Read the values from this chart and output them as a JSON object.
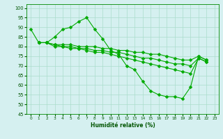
{
  "series": [
    {
      "x": [
        0,
        1,
        2,
        3,
        4,
        5,
        6,
        7,
        8,
        9,
        10,
        11,
        12,
        13,
        14,
        15,
        16,
        17,
        18,
        19,
        20,
        21,
        22
      ],
      "y": [
        89,
        82,
        82,
        85,
        89,
        90,
        93,
        95,
        89,
        84,
        78,
        76,
        70,
        68,
        62,
        57,
        55,
        54,
        54,
        53,
        59,
        75,
        73
      ]
    },
    {
      "x": [
        1,
        2,
        3,
        4,
        5,
        6,
        7,
        8,
        9,
        10,
        11,
        12,
        13,
        14,
        15,
        16,
        17,
        18,
        19,
        20,
        21,
        22
      ],
      "y": [
        82,
        82,
        81,
        81,
        81,
        80,
        80,
        80,
        79,
        79,
        78,
        78,
        77,
        77,
        76,
        76,
        75,
        74,
        73,
        73,
        75,
        73
      ]
    },
    {
      "x": [
        1,
        2,
        3,
        4,
        5,
        6,
        7,
        8,
        9,
        10,
        11,
        12,
        13,
        14,
        15,
        16,
        17,
        18,
        19,
        20,
        21,
        22
      ],
      "y": [
        82,
        82,
        81,
        80,
        80,
        79,
        79,
        78,
        78,
        77,
        77,
        76,
        75,
        74,
        74,
        73,
        72,
        71,
        71,
        70,
        74,
        72
      ]
    },
    {
      "x": [
        1,
        2,
        3,
        4,
        5,
        6,
        7,
        8,
        9,
        10,
        11,
        12,
        13,
        14,
        15,
        16,
        17,
        18,
        19,
        20,
        21,
        22
      ],
      "y": [
        82,
        82,
        80,
        80,
        79,
        79,
        78,
        77,
        77,
        76,
        75,
        74,
        73,
        72,
        71,
        70,
        69,
        68,
        67,
        66,
        74,
        72
      ]
    }
  ],
  "line_color": "#00aa00",
  "marker": "D",
  "marker_size": 2.5,
  "bg_color": "#d5f0f0",
  "grid_color": "#aaddcc",
  "xlabel": "Humidité relative (%)",
  "xlim": [
    -0.5,
    23.5
  ],
  "ylim": [
    45,
    102
  ],
  "yticks": [
    45,
    50,
    55,
    60,
    65,
    70,
    75,
    80,
    85,
    90,
    95,
    100
  ],
  "xticks": [
    0,
    1,
    2,
    3,
    4,
    5,
    6,
    7,
    8,
    9,
    10,
    11,
    12,
    13,
    14,
    15,
    16,
    17,
    18,
    19,
    20,
    21,
    22,
    23
  ]
}
